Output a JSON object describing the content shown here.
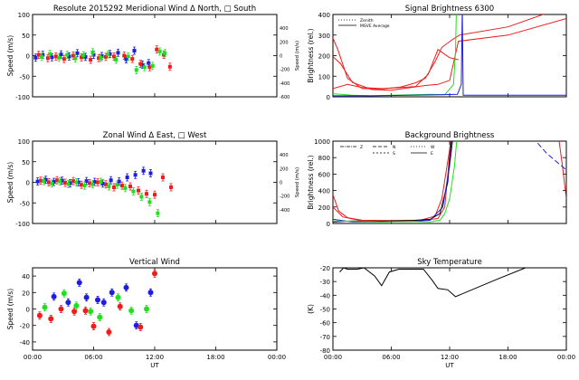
{
  "colors": {
    "red": "#ee1c1c",
    "green": "#1fe01f",
    "blue": "#1c1ce6",
    "black": "#000000"
  },
  "chart_data": [
    {
      "id": "meridional",
      "type": "scatter",
      "title": "Resolute  2015292    Meridional Wind   Δ North, □ South",
      "ylabel": "Speed (m/s)",
      "ylabel_right": "Speed (m/s)",
      "ylim": [
        -100,
        100
      ],
      "yticks": [
        "-100",
        "-50",
        "0",
        "50",
        "100"
      ],
      "ytick_values": [
        -100,
        -50,
        0,
        50,
        100
      ],
      "right_ticks": [
        "-600",
        "-400",
        "-200",
        "0",
        "200",
        "400"
      ],
      "right_tick_values": [
        -100,
        -66.7,
        -33.3,
        0,
        33.3,
        66.7
      ],
      "xlim": [
        0,
        24
      ],
      "xticks": [],
      "xtick_values": [
        0,
        6,
        12,
        18,
        24
      ],
      "series": [
        {
          "name": "blue",
          "color": "blue",
          "x": [
            0.3,
            1.0,
            1.9,
            2.8,
            3.6,
            4.4,
            5.2,
            6.0,
            6.8,
            7.6,
            8.4,
            9.2,
            10.0,
            10.8,
            11.4
          ],
          "y": [
            -5,
            2,
            -4,
            3,
            -2,
            6,
            -3,
            2,
            -1,
            4,
            7,
            -9,
            12,
            -22,
            -18
          ]
        },
        {
          "name": "red",
          "color": "red",
          "x": [
            0.6,
            1.5,
            2.3,
            3.1,
            4.0,
            4.8,
            5.7,
            6.5,
            7.2,
            8.0,
            9.0,
            9.8,
            10.6,
            11.5,
            12.2,
            12.9,
            13.5
          ],
          "y": [
            2,
            -6,
            -2,
            -8,
            0,
            -4,
            -10,
            -6,
            -3,
            -2,
            0,
            -8,
            -20,
            -28,
            15,
            2,
            -27
          ]
        },
        {
          "name": "green",
          "color": "green",
          "x": [
            0.9,
            1.7,
            2.6,
            3.4,
            4.2,
            5.0,
            5.9,
            6.7,
            7.4,
            8.2,
            9.4,
            10.2,
            11.0,
            11.8,
            12.5,
            13.0
          ],
          "y": [
            -3,
            4,
            -5,
            2,
            -7,
            1,
            8,
            -5,
            3,
            -10,
            -2,
            -35,
            -28,
            -25,
            10,
            6
          ]
        }
      ]
    },
    {
      "id": "zonal",
      "type": "scatter",
      "title": "Zonal Wind    Δ East, □ West",
      "ylabel": "Speed (m/s)",
      "ylabel_right": "Speed (m/s)",
      "ylim": [
        -100,
        100
      ],
      "yticks": [
        "-100",
        "-50",
        "0",
        "50",
        "100"
      ],
      "ytick_values": [
        -100,
        -50,
        0,
        50,
        100
      ],
      "right_ticks": [
        "-400",
        "-200",
        "0",
        "200",
        "400"
      ],
      "right_tick_values": [
        -66.7,
        -33.3,
        0,
        33.3,
        66.7
      ],
      "xlim": [
        0,
        24
      ],
      "xticks": [],
      "xtick_values": [
        0,
        6,
        12,
        18,
        24
      ],
      "series": [
        {
          "name": "blue",
          "color": "blue",
          "x": [
            0.5,
            1.3,
            2.1,
            2.9,
            3.7,
            4.5,
            5.3,
            6.1,
            6.9,
            7.7,
            8.5,
            9.3,
            10.1,
            10.9,
            11.6
          ],
          "y": [
            2,
            6,
            1,
            4,
            -2,
            0,
            3,
            1,
            -3,
            5,
            2,
            12,
            18,
            28,
            22
          ]
        },
        {
          "name": "red",
          "color": "red",
          "x": [
            0.8,
            1.6,
            2.4,
            3.2,
            4.0,
            4.8,
            5.6,
            6.4,
            7.2,
            8.0,
            8.8,
            9.6,
            10.4,
            11.2,
            12.0,
            12.8,
            13.6
          ],
          "y": [
            4,
            0,
            5,
            -1,
            3,
            -6,
            -2,
            0,
            -5,
            -12,
            -8,
            -10,
            -20,
            -28,
            -30,
            12,
            -12
          ]
        },
        {
          "name": "green",
          "color": "green",
          "x": [
            1.1,
            1.9,
            2.7,
            3.5,
            4.3,
            5.1,
            5.9,
            6.7,
            7.5,
            8.3,
            9.1,
            9.9,
            10.7,
            11.5,
            12.3
          ],
          "y": [
            3,
            -3,
            2,
            -4,
            0,
            -8,
            -5,
            1,
            -10,
            -6,
            -14,
            -22,
            -35,
            -48,
            -75
          ]
        }
      ]
    },
    {
      "id": "vertical",
      "type": "scatter",
      "title": "Vertical Wind",
      "ylabel": "Speed (m/s)",
      "ylim": [
        -50,
        50
      ],
      "yticks": [
        "-40",
        "-20",
        "0",
        "20",
        "40"
      ],
      "ytick_values": [
        -40,
        -20,
        0,
        20,
        40
      ],
      "xlim": [
        0,
        24
      ],
      "xticks": [
        "00:00",
        "06:00",
        "12:00",
        "18:00",
        "00:00"
      ],
      "xtick_values": [
        0,
        6,
        12,
        18,
        24
      ],
      "xlabel": "UT",
      "series": [
        {
          "name": "blue",
          "color": "blue",
          "x": [
            2.1,
            3.5,
            4.6,
            5.3,
            6.4,
            7.0,
            7.8,
            9.2,
            10.2,
            11.6
          ],
          "y": [
            15,
            8,
            32,
            14,
            11,
            8,
            20,
            26,
            -20,
            20
          ]
        },
        {
          "name": "red",
          "color": "red",
          "x": [
            0.7,
            1.8,
            2.8,
            4.1,
            5.2,
            6.0,
            7.5,
            8.6,
            10.6,
            12.0
          ],
          "y": [
            -8,
            -12,
            0,
            -3,
            -2,
            -21,
            -28,
            3,
            -22,
            43
          ]
        },
        {
          "name": "green",
          "color": "green",
          "x": [
            1.2,
            3.1,
            4.3,
            5.7,
            6.6,
            8.4,
            9.7,
            11.2
          ],
          "y": [
            2,
            19,
            4,
            -3,
            -10,
            14,
            -2,
            0
          ]
        }
      ]
    },
    {
      "id": "signal",
      "type": "line",
      "title": "Signal Brightness          6300",
      "ylabel": "Brightness (rel.)",
      "ylim": [
        0,
        400
      ],
      "yticks": [
        "0",
        "100",
        "200",
        "300",
        "400"
      ],
      "ytick_values": [
        0,
        100,
        200,
        300,
        400
      ],
      "xlim": [
        0,
        24
      ],
      "xticks": [],
      "xtick_values": [
        0,
        6,
        12,
        18,
        24
      ],
      "legend": [
        "Zenith",
        "MSVE Average"
      ],
      "series": [
        {
          "name": "red-1",
          "color": "red",
          "dash": "",
          "x": [
            0,
            0.5,
            1.5,
            3,
            5,
            7,
            8.5,
            9.5,
            10.5,
            11.2,
            12.2,
            13,
            18,
            24
          ],
          "y": [
            285,
            230,
            90,
            40,
            38,
            48,
            68,
            90,
            170,
            240,
            275,
            300,
            340,
            440
          ]
        },
        {
          "name": "red-2",
          "color": "red",
          "dash": "",
          "x": [
            0,
            0.8,
            2,
            4,
            6,
            8,
            9.5,
            10.8,
            12,
            12.9,
            18,
            24
          ],
          "y": [
            195,
            160,
            70,
            35,
            32,
            45,
            55,
            60,
            80,
            270,
            300,
            380
          ]
        },
        {
          "name": "red-3",
          "color": "red",
          "dash": "",
          "x": [
            0,
            1.5,
            3,
            5,
            7,
            8.5,
            9.8,
            10.8,
            12,
            12.9
          ],
          "y": [
            40,
            60,
            45,
            40,
            45,
            50,
            110,
            230,
            190,
            180
          ]
        },
        {
          "name": "green",
          "color": "green",
          "dash": "",
          "x": [
            0,
            2,
            4,
            6,
            8,
            10,
            11.5,
            12.4,
            12.6,
            12.7
          ],
          "y": [
            15,
            8,
            5,
            8,
            10,
            12,
            10,
            60,
            220,
            430
          ]
        },
        {
          "name": "blue",
          "color": "blue",
          "dash": "",
          "x": [
            0,
            4,
            8,
            11,
            12.8,
            13.2,
            13.3,
            13.4,
            24
          ],
          "y": [
            5,
            5,
            8,
            10,
            12,
            60,
            430,
            8,
            8
          ]
        }
      ]
    },
    {
      "id": "background",
      "type": "line",
      "title": "Background Brightness",
      "ylabel": "Brightness (rel.)",
      "ylim": [
        0,
        1000
      ],
      "yticks": [
        "0",
        "200",
        "400",
        "600",
        "800",
        "1000"
      ],
      "ytick_values": [
        0,
        200,
        400,
        600,
        800,
        1000
      ],
      "xlim": [
        0,
        24
      ],
      "xticks": [],
      "xtick_values": [
        0,
        6,
        12,
        18,
        24
      ],
      "legend": [
        "Z",
        "N",
        "S",
        "W",
        "E"
      ],
      "series": [
        {
          "name": "red-1",
          "color": "red",
          "dash": "",
          "x": [
            0,
            0.6,
            1.5,
            3,
            6,
            9,
            10.5,
            11.2,
            11.6,
            12,
            12.2
          ],
          "y": [
            350,
            150,
            70,
            40,
            35,
            40,
            90,
            300,
            600,
            900,
            1100
          ]
        },
        {
          "name": "red-2",
          "color": "red",
          "dash": "",
          "x": [
            0,
            1,
            3,
            6,
            9,
            10.8,
            11.5,
            11.9,
            12.2
          ],
          "y": [
            200,
            80,
            30,
            30,
            35,
            60,
            200,
            700,
            1100
          ]
        },
        {
          "name": "red-3",
          "color": "red",
          "dash": "",
          "x": [
            23.2,
            23.6,
            24
          ],
          "y": [
            1050,
            700,
            300
          ]
        },
        {
          "name": "black",
          "color": "black",
          "dash": "",
          "x": [
            0,
            2,
            4,
            6,
            8,
            10,
            11,
            11.8,
            12.1,
            12.3
          ],
          "y": [
            20,
            30,
            25,
            30,
            35,
            50,
            120,
            500,
            900,
            1100
          ]
        },
        {
          "name": "blue-1",
          "color": "blue",
          "dash": "",
          "x": [
            0,
            2,
            5,
            8,
            10,
            11.3,
            12,
            12.4
          ],
          "y": [
            50,
            20,
            20,
            25,
            40,
            200,
            700,
            1100
          ]
        },
        {
          "name": "blue-2",
          "color": "blue",
          "dash": "6,3",
          "x": [
            20.5,
            22,
            23.5,
            24
          ],
          "y": [
            1050,
            850,
            700,
            650
          ]
        },
        {
          "name": "green",
          "color": "green",
          "dash": "",
          "x": [
            0,
            2,
            5,
            8,
            10,
            11,
            11.5,
            12,
            12.5,
            12.8
          ],
          "y": [
            30,
            25,
            20,
            25,
            20,
            40,
            120,
            300,
            700,
            1100
          ]
        }
      ]
    },
    {
      "id": "sky",
      "type": "line",
      "title": "Sky Temperature",
      "ylabel": "(K)",
      "ylim": [
        -80,
        -20
      ],
      "yticks": [
        "-80",
        "-70",
        "-60",
        "-50",
        "-40",
        "-30",
        "-20"
      ],
      "ytick_values": [
        -80,
        -70,
        -60,
        -50,
        -40,
        -30,
        -20
      ],
      "xlim": [
        0,
        24
      ],
      "xticks": [
        "00:00",
        "06:00",
        "12:00",
        "18:00",
        "00:00"
      ],
      "xtick_values": [
        0,
        6,
        12,
        18,
        24
      ],
      "xlabel": "UT",
      "series": [
        {
          "name": "black",
          "color": "black",
          "dash": "",
          "x": [
            0.7,
            1.1,
            1.5,
            2.5,
            3.2,
            4.3,
            5.0,
            5.8,
            6.8,
            7.8,
            9.3,
            10.2,
            10.8,
            11.8,
            12.6,
            17.0,
            19.8
          ],
          "y": [
            -23,
            -20,
            -21,
            -21,
            -20,
            -26,
            -33,
            -23,
            -21,
            -21,
            -21,
            -29,
            -35,
            -36,
            -41,
            -28,
            -20
          ]
        }
      ]
    }
  ]
}
